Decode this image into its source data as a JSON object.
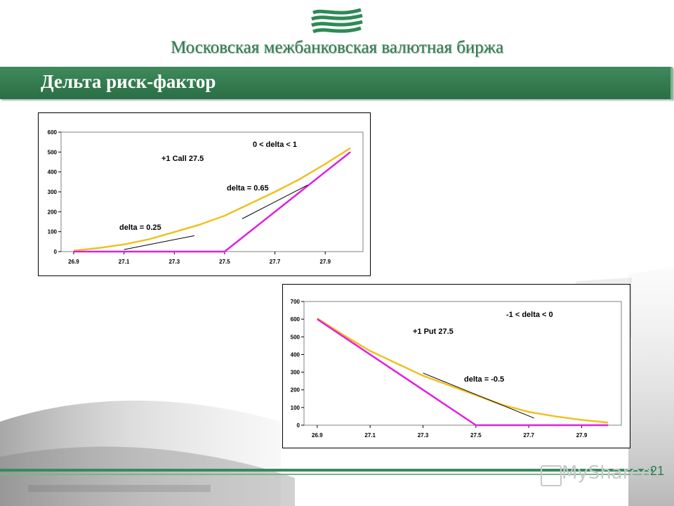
{
  "header": {
    "org_name": "Московская межбанковская валютная биржа",
    "slide_title": "Дельта риск-фактор",
    "logo_icon": "micex-wave-logo-icon"
  },
  "footer": {
    "page_number": "21",
    "watermark": "MyShared"
  },
  "colors": {
    "brand_green": "#2e7d4f",
    "option_curve": "#f0c020",
    "payoff_line": "#e020e0",
    "tangent": "#000000"
  },
  "chart_data": [
    {
      "type": "line",
      "x": [
        26.9,
        27.0,
        27.1,
        27.2,
        27.3,
        27.4,
        27.5,
        27.6,
        27.7,
        27.8,
        27.9,
        28.0
      ],
      "xticks": [
        26.9,
        27.1,
        27.3,
        27.5,
        27.7,
        27.9
      ],
      "xlabels": [
        "26.9",
        "27.1",
        "27.3",
        "27.5",
        "27.7",
        "27.9"
      ],
      "ylim": [
        0,
        600
      ],
      "yticks": [
        0,
        100,
        200,
        300,
        400,
        500,
        600
      ],
      "series": [
        {
          "values": [
            5,
            18,
            36,
            62,
            98,
            135,
            180,
            240,
            300,
            365,
            440,
            520
          ]
        },
        {
          "values": [
            0,
            0,
            0,
            0,
            0,
            0,
            0,
            100,
            200,
            300,
            400,
            500
          ]
        }
      ],
      "tangents": [
        {
          "x": [
            27.1,
            27.38
          ],
          "y": [
            10,
            80
          ]
        },
        {
          "x": [
            27.57,
            27.83
          ],
          "y": [
            165,
            334
          ]
        }
      ],
      "annotations": [
        "0 < delta < 1",
        "+1 Call 27.5",
        "delta = 0.65",
        "delta = 0.25"
      ]
    },
    {
      "type": "line",
      "x": [
        26.9,
        27.0,
        27.1,
        27.2,
        27.3,
        27.4,
        27.5,
        27.6,
        27.7,
        27.8,
        27.9,
        28.0
      ],
      "xticks": [
        26.9,
        27.1,
        27.3,
        27.5,
        27.7,
        27.9
      ],
      "xlabels": [
        "26.9",
        "27.1",
        "27.3",
        "27.5",
        "27.7",
        "27.9"
      ],
      "ylim": [
        0,
        700
      ],
      "yticks": [
        0,
        100,
        200,
        300,
        400,
        500,
        600,
        700
      ],
      "series": [
        {
          "values": [
            605,
            510,
            420,
            350,
            280,
            225,
            170,
            115,
            75,
            50,
            30,
            15
          ]
        },
        {
          "values": [
            600,
            500,
            400,
            300,
            200,
            100,
            0,
            0,
            0,
            0,
            0,
            0
          ]
        }
      ],
      "tangents": [
        {
          "x": [
            27.3,
            27.72
          ],
          "y": [
            295,
            40
          ]
        }
      ],
      "annotations": [
        "-1 < delta < 0",
        "+1 Put 27.5",
        "delta = -0.5"
      ]
    }
  ]
}
